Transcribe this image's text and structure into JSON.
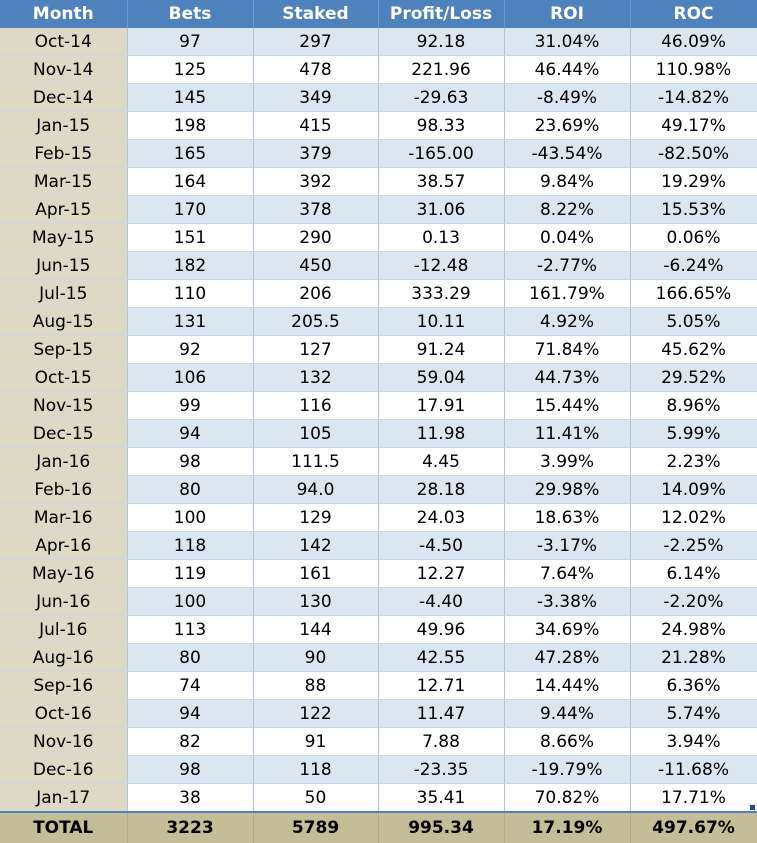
{
  "columns": [
    "Month",
    "Bets",
    "Staked",
    "Profit/Loss",
    "ROI",
    "ROC"
  ],
  "rows": [
    [
      "Oct-14",
      "97",
      "297",
      "92.18",
      "31.04%",
      "46.09%"
    ],
    [
      "Nov-14",
      "125",
      "478",
      "221.96",
      "46.44%",
      "110.98%"
    ],
    [
      "Dec-14",
      "145",
      "349",
      "-29.63",
      "-8.49%",
      "-14.82%"
    ],
    [
      "Jan-15",
      "198",
      "415",
      "98.33",
      "23.69%",
      "49.17%"
    ],
    [
      "Feb-15",
      "165",
      "379",
      "-165.00",
      "-43.54%",
      "-82.50%"
    ],
    [
      "Mar-15",
      "164",
      "392",
      "38.57",
      "9.84%",
      "19.29%"
    ],
    [
      "Apr-15",
      "170",
      "378",
      "31.06",
      "8.22%",
      "15.53%"
    ],
    [
      "May-15",
      "151",
      "290",
      "0.13",
      "0.04%",
      "0.06%"
    ],
    [
      "Jun-15",
      "182",
      "450",
      "-12.48",
      "-2.77%",
      "-6.24%"
    ],
    [
      "Jul-15",
      "110",
      "206",
      "333.29",
      "161.79%",
      "166.65%"
    ],
    [
      "Aug-15",
      "131",
      "205.5",
      "10.11",
      "4.92%",
      "5.05%"
    ],
    [
      "Sep-15",
      "92",
      "127",
      "91.24",
      "71.84%",
      "45.62%"
    ],
    [
      "Oct-15",
      "106",
      "132",
      "59.04",
      "44.73%",
      "29.52%"
    ],
    [
      "Nov-15",
      "99",
      "116",
      "17.91",
      "15.44%",
      "8.96%"
    ],
    [
      "Dec-15",
      "94",
      "105",
      "11.98",
      "11.41%",
      "5.99%"
    ],
    [
      "Jan-16",
      "98",
      "111.5",
      "4.45",
      "3.99%",
      "2.23%"
    ],
    [
      "Feb-16",
      "80",
      "94.0",
      "28.18",
      "29.98%",
      "14.09%"
    ],
    [
      "Mar-16",
      "100",
      "129",
      "24.03",
      "18.63%",
      "12.02%"
    ],
    [
      "Apr-16",
      "118",
      "142",
      "-4.50",
      "-3.17%",
      "-2.25%"
    ],
    [
      "May-16",
      "119",
      "161",
      "12.27",
      "7.64%",
      "6.14%"
    ],
    [
      "Jun-16",
      "100",
      "130",
      "-4.40",
      "-3.38%",
      "-2.20%"
    ],
    [
      "Jul-16",
      "113",
      "144",
      "49.96",
      "34.69%",
      "24.98%"
    ],
    [
      "Aug-16",
      "80",
      "90",
      "42.55",
      "47.28%",
      "21.28%"
    ],
    [
      "Sep-16",
      "74",
      "88",
      "12.71",
      "14.44%",
      "6.36%"
    ],
    [
      "Oct-16",
      "94",
      "122",
      "11.47",
      "9.44%",
      "5.74%"
    ],
    [
      "Nov-16",
      "82",
      "91",
      "7.88",
      "8.66%",
      "3.94%"
    ],
    [
      "Dec-16",
      "98",
      "118",
      "-23.35",
      "-19.79%",
      "-11.68%"
    ],
    [
      "Jan-17",
      "38",
      "50",
      "35.41",
      "70.82%",
      "17.71%"
    ]
  ],
  "total": [
    "TOTAL",
    "3223",
    "5789",
    "995.34",
    "17.19%",
    "497.67%"
  ],
  "colors": {
    "header_bg": "#4f81bd",
    "header_text": "#ffffff",
    "band_blue": "#dce6f1",
    "band_white": "#ffffff",
    "month_col_bg": "#ddd9c4",
    "total_bg": "#c4bd97"
  }
}
